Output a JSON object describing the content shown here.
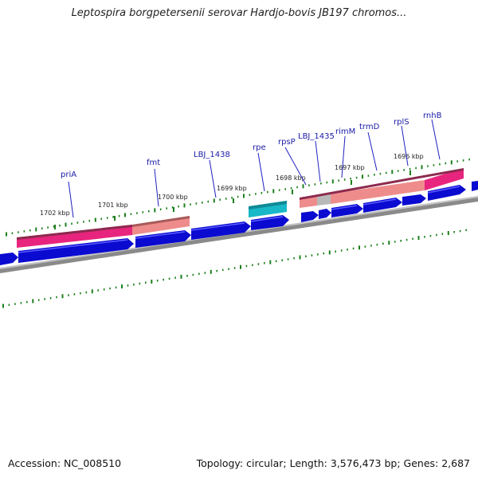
{
  "title": "Leptospira borgpetersenii serovar Hardjo-bovis JB197 chromos...",
  "footer": {
    "accession_text": "Accession: NC_008510",
    "summary_text": "Topology: circular; Length: 3,576,473 bp; Genes: 2,687"
  },
  "colors": {
    "cds_forward": "#0a0ad0",
    "cds_reverse": "#0a0ad0",
    "gene_strong": "#e8257e",
    "gene_light": "#ee8c8c",
    "gene_gray": "#b8b8b8",
    "rna": "#18b8c8",
    "backbone": "#8a8a8a",
    "ticks": "#1d7f1d",
    "label_line": "#2020c0"
  },
  "kbp_ticks": [
    {
      "kbp": 1702,
      "label": "1702 kbp"
    },
    {
      "kbp": 1701,
      "label": "1701 kbp"
    },
    {
      "kbp": 1700,
      "label": "1700 kbp"
    },
    {
      "kbp": 1699,
      "label": "1699 kbp"
    },
    {
      "kbp": 1698,
      "label": "1698 kbp"
    },
    {
      "kbp": 1697,
      "label": "1697 kbp"
    },
    {
      "kbp": 1696,
      "label": "1696 kbp"
    }
  ],
  "gene_labels": [
    {
      "id": "pria",
      "text": "priA"
    },
    {
      "id": "fmt",
      "text": "fmt"
    },
    {
      "id": "lbj1438",
      "text": "LBJ_1438"
    },
    {
      "id": "rpe",
      "text": "rpe"
    },
    {
      "id": "rpsp",
      "text": "rpsP"
    },
    {
      "id": "lbj1435",
      "text": "LBJ_1435"
    },
    {
      "id": "rimm",
      "text": "rimM"
    },
    {
      "id": "trmd",
      "text": "trmD"
    },
    {
      "id": "rpls",
      "text": "rplS"
    },
    {
      "id": "rnhb",
      "text": "rnhB"
    }
  ]
}
